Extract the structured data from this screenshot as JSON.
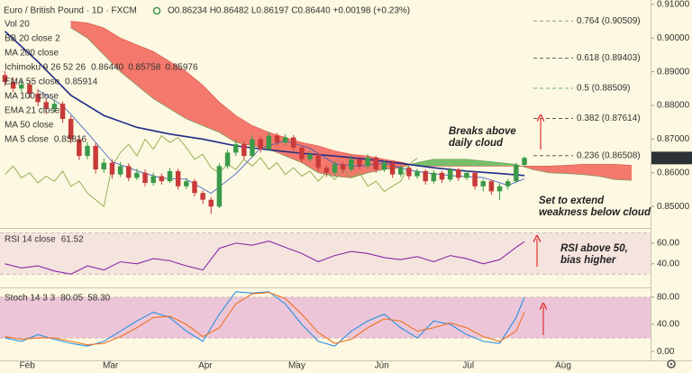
{
  "chart_data": [
    {
      "type": "candlestick",
      "title": "Euro / British Pound · 1D · FXCM",
      "ohlc_text": "O0.86234 H0.86482 L0.86197 C0.86440 +0.00198 (+0.23%)",
      "open": [
        0.889,
        0.887,
        0.885,
        0.8862,
        0.8835,
        0.881,
        0.879,
        0.8805,
        0.876,
        0.87,
        0.865,
        0.868,
        0.861,
        0.863,
        0.8595,
        0.862,
        0.8585,
        0.86,
        0.857,
        0.859,
        0.8575,
        0.8605,
        0.856,
        0.8575,
        0.854,
        0.852,
        0.85,
        0.862,
        0.866,
        0.8685,
        0.865,
        0.87,
        0.867,
        0.871,
        0.869,
        0.8705,
        0.8675,
        0.864,
        0.8655,
        0.8615,
        0.86,
        0.8625,
        0.861,
        0.864,
        0.862,
        0.8645,
        0.861,
        0.863,
        0.8595,
        0.8615,
        0.859,
        0.8605,
        0.8575,
        0.86,
        0.858,
        0.861,
        0.8585,
        0.86,
        0.856,
        0.8575,
        0.8545,
        0.856,
        0.8575,
        0.86234
      ],
      "high": [
        0.8902,
        0.8883,
        0.8875,
        0.8872,
        0.8848,
        0.8822,
        0.8818,
        0.8812,
        0.877,
        0.8712,
        0.8692,
        0.8688,
        0.8642,
        0.864,
        0.8632,
        0.8628,
        0.8612,
        0.861,
        0.86,
        0.8598,
        0.8615,
        0.8612,
        0.8585,
        0.8582,
        0.8548,
        0.8528,
        0.8628,
        0.8668,
        0.8698,
        0.8692,
        0.8712,
        0.8708,
        0.8722,
        0.8718,
        0.8715,
        0.8712,
        0.8682,
        0.8665,
        0.866,
        0.8622,
        0.8635,
        0.8632,
        0.8652,
        0.8648,
        0.8655,
        0.865,
        0.8638,
        0.8636,
        0.8622,
        0.862,
        0.8612,
        0.861,
        0.8608,
        0.8606,
        0.8616,
        0.8615,
        0.8607,
        0.8605,
        0.8582,
        0.858,
        0.8568,
        0.8582,
        0.863,
        0.86482
      ],
      "low": [
        0.8858,
        0.884,
        0.8838,
        0.8822,
        0.8798,
        0.8775,
        0.878,
        0.8748,
        0.8688,
        0.8638,
        0.864,
        0.8598,
        0.86,
        0.8582,
        0.8588,
        0.8575,
        0.8578,
        0.856,
        0.8562,
        0.8565,
        0.857,
        0.855,
        0.8552,
        0.853,
        0.8508,
        0.8478,
        0.8495,
        0.8612,
        0.865,
        0.864,
        0.8645,
        0.866,
        0.8665,
        0.868,
        0.8682,
        0.8665,
        0.863,
        0.8632,
        0.8605,
        0.8588,
        0.8592,
        0.86,
        0.8602,
        0.861,
        0.8612,
        0.86,
        0.8602,
        0.8585,
        0.8588,
        0.858,
        0.8582,
        0.8565,
        0.8568,
        0.857,
        0.8574,
        0.8576,
        0.8578,
        0.855,
        0.8545,
        0.8535,
        0.852,
        0.855,
        0.857,
        0.86197
      ],
      "close": [
        0.887,
        0.885,
        0.8862,
        0.8835,
        0.881,
        0.879,
        0.8805,
        0.876,
        0.87,
        0.865,
        0.868,
        0.861,
        0.863,
        0.8595,
        0.862,
        0.8585,
        0.86,
        0.857,
        0.859,
        0.8575,
        0.8605,
        0.856,
        0.8575,
        0.854,
        0.852,
        0.85,
        0.862,
        0.866,
        0.8685,
        0.865,
        0.87,
        0.867,
        0.871,
        0.869,
        0.8705,
        0.8675,
        0.864,
        0.8655,
        0.8615,
        0.86,
        0.8625,
        0.861,
        0.864,
        0.862,
        0.8645,
        0.861,
        0.863,
        0.8595,
        0.8615,
        0.859,
        0.8605,
        0.8575,
        0.86,
        0.858,
        0.861,
        0.8585,
        0.86,
        0.856,
        0.8575,
        0.8545,
        0.856,
        0.8575,
        0.8623,
        0.8644
      ],
      "up_color": "#3a9a4a",
      "down_color": "#c83a3a",
      "cloud": {
        "x": [
          8,
          10,
          12,
          14,
          16,
          18,
          20,
          22,
          24,
          26,
          28,
          30,
          32,
          34,
          36,
          38,
          40,
          42,
          44,
          46,
          48,
          50,
          52,
          54,
          56,
          58,
          60,
          62,
          64,
          66,
          68,
          70,
          72,
          74,
          76
        ],
        "span_a": [
          0.903,
          0.9,
          0.895,
          0.89,
          0.886,
          0.882,
          0.879,
          0.876,
          0.874,
          0.872,
          0.869,
          0.868,
          0.867,
          0.865,
          0.863,
          0.86,
          0.859,
          0.8585,
          0.86,
          0.861,
          0.8615,
          0.863,
          0.864,
          0.864,
          0.864,
          0.8635,
          0.863,
          0.8625,
          0.861,
          0.86,
          0.8598,
          0.8595,
          0.859,
          0.858,
          0.8578
        ],
        "span_b": [
          0.905,
          0.9045,
          0.903,
          0.9,
          0.898,
          0.896,
          0.893,
          0.89,
          0.886,
          0.881,
          0.877,
          0.874,
          0.872,
          0.8705,
          0.869,
          0.868,
          0.8665,
          0.8655,
          0.865,
          0.864,
          0.8632,
          0.862,
          0.862,
          0.862,
          0.862,
          0.862,
          0.862,
          0.862,
          0.862,
          0.862,
          0.8622,
          0.8625,
          0.8625,
          0.8625,
          0.8622
        ],
        "bull_color": "#77bf6a",
        "bear_color": "#f4786c"
      },
      "overlays": [
        {
          "color": "#8aab4a",
          "width": 0.9,
          "values": [
            0.8595,
            0.862,
            0.8585,
            0.86,
            0.857,
            0.859,
            0.8575,
            0.8605,
            0.856,
            0.8575,
            0.854,
            0.852,
            0.85,
            0.862,
            0.866,
            0.8685,
            0.865,
            0.87,
            0.867,
            0.871,
            0.869,
            0.8705,
            0.8675,
            0.864,
            0.8655,
            0.8615,
            0.86,
            0.8625,
            0.861,
            0.864,
            0.862,
            0.8645,
            0.861,
            0.863,
            0.8595,
            0.8615,
            0.859,
            0.8605,
            0.8575,
            0.86,
            0.858,
            0.861,
            0.8585,
            0.86,
            0.856,
            0.8575,
            0.8545,
            0.856,
            0.8575,
            0.8623,
            0.8644
          ]
        },
        {
          "color": "#1f2c86",
          "width": 1.6,
          "x": [
            0,
            4,
            8,
            12,
            16,
            20,
            24,
            28,
            32,
            36,
            40,
            44,
            48,
            52,
            56,
            60,
            63
          ],
          "values": [
            0.902,
            0.893,
            0.883,
            0.877,
            0.8735,
            0.8715,
            0.87,
            0.868,
            0.8668,
            0.8658,
            0.865,
            0.864,
            0.8628,
            0.8615,
            0.8605,
            0.8598,
            0.8592
          ]
        },
        {
          "color": "#3b5bc4",
          "width": 0.8,
          "x": [
            4,
            7,
            10,
            13,
            16,
            19,
            22,
            25,
            28,
            31,
            34,
            37,
            40,
            43,
            46,
            49,
            52,
            55,
            58,
            61,
            63
          ],
          "values": [
            0.8845,
            0.88,
            0.8719,
            0.8633,
            0.8606,
            0.8584,
            0.8581,
            0.8539,
            0.8597,
            0.8673,
            0.8695,
            0.8673,
            0.8627,
            0.8619,
            0.8629,
            0.8608,
            0.8597,
            0.859,
            0.8586,
            0.8563,
            0.8582
          ]
        }
      ],
      "indicator_labels": [
        {
          "text": "Vol 20",
          "muted": true
        },
        {
          "text": "BB 20 close 2",
          "muted": true
        },
        {
          "text": "MA 200 close",
          "muted": true
        },
        {
          "text": "Ichimoku 9 26 52 26",
          "values": [
            {
              "text": "0.86440",
              "color": "#3a9a4a"
            },
            {
              "text": "0.85758",
              "color": "#4d8f7a"
            },
            {
              "text": "0.85976",
              "color": "#d0453a"
            }
          ]
        },
        {
          "text": "EMA 55 close",
          "values": [
            {
              "text": "0.85914",
              "color": "#1f2c86"
            }
          ]
        },
        {
          "text": "MA 100 close",
          "muted": true
        },
        {
          "text": "EMA 21 close",
          "muted": true
        },
        {
          "text": "MA 50 close",
          "muted": true
        },
        {
          "text": "MA 5 close",
          "values": [
            {
              "text": "0.85816",
              "color": "#3b5bc4"
            }
          ]
        }
      ],
      "fib_levels": [
        {
          "label": "0.764 (0.90509)",
          "value": 0.90509,
          "color": "#777777"
        },
        {
          "label": "0.618 (0.89403)",
          "value": 0.89403,
          "color": "#555555"
        },
        {
          "label": "0.5 (0.88509)",
          "value": 0.88509,
          "color": "#3f9a3f"
        },
        {
          "label": "0.382 (0.87614)",
          "value": 0.87614,
          "color": "#444444"
        },
        {
          "label": "0.236 (0.86508)",
          "value": 0.86508,
          "color": "#444444"
        }
      ],
      "last_price": {
        "value": 0.8644,
        "label": "0.86440"
      },
      "xlim": [
        -0.6,
        78.3
      ],
      "xticks": [
        {
          "value": 2.7,
          "label": "Feb"
        },
        {
          "value": 12.8,
          "label": "Mar"
        },
        {
          "value": 24.3,
          "label": "Apr"
        },
        {
          "value": 35.4,
          "label": "May"
        },
        {
          "value": 45.7,
          "label": "Jun"
        },
        {
          "value": 56.2,
          "label": "Jul"
        },
        {
          "value": 67.7,
          "label": "Aug"
        }
      ],
      "ylim": [
        0.8439,
        0.9113
      ],
      "yticks": [
        {
          "value": 0.91,
          "label": "0.91000"
        },
        {
          "value": 0.9,
          "label": "0.90000"
        },
        {
          "value": 0.89,
          "label": "0.89000"
        },
        {
          "value": 0.88,
          "label": "0.88000"
        },
        {
          "value": 0.87,
          "label": "0.87000"
        },
        {
          "value": 0.86,
          "label": "0.86000"
        },
        {
          "value": 0.85,
          "label": "0.85000"
        }
      ]
    },
    {
      "type": "line",
      "label": "RSI 14 close",
      "x": [
        0,
        2,
        4,
        6,
        8,
        10,
        12,
        14,
        16,
        18,
        20,
        22,
        24,
        26,
        28,
        30,
        32,
        34,
        36,
        38,
        40,
        42,
        44,
        46,
        48,
        50,
        52,
        54,
        56,
        58,
        60,
        62,
        63
      ],
      "series": [
        {
          "color": "#8a2aa8",
          "value_label": "61.52",
          "values": [
            40,
            36,
            38,
            33,
            30,
            38,
            34,
            42,
            40,
            45,
            43,
            38,
            34,
            55,
            60,
            58,
            62,
            56,
            50,
            42,
            48,
            52,
            50,
            46,
            44,
            47,
            42,
            48,
            45,
            40,
            44,
            56,
            61.52
          ]
        }
      ],
      "band": [
        70,
        30
      ],
      "band_color": "#f5e3de",
      "ylim": [
        18,
        73
      ],
      "yticks": [
        {
          "value": 60,
          "label": "60.00"
        },
        {
          "value": 40,
          "label": "40.00"
        }
      ]
    },
    {
      "type": "line",
      "label": "Stoch 14 3 3",
      "x": [
        0,
        2,
        4,
        6,
        8,
        10,
        12,
        14,
        16,
        18,
        20,
        22,
        24,
        26,
        28,
        30,
        32,
        34,
        36,
        38,
        40,
        42,
        44,
        46,
        48,
        50,
        52,
        54,
        56,
        58,
        60,
        62,
        63
      ],
      "series": [
        {
          "color": "#2a8fe0",
          "value_label": "80.05",
          "values": [
            20,
            15,
            25,
            18,
            12,
            8,
            15,
            30,
            45,
            58,
            50,
            30,
            15,
            55,
            88,
            86,
            88,
            70,
            40,
            15,
            8,
            30,
            45,
            55,
            35,
            20,
            45,
            40,
            25,
            15,
            12,
            50,
            80.05
          ]
        },
        {
          "color": "#f07020",
          "value_label": "58.30",
          "values": [
            22,
            18,
            20,
            20,
            15,
            10,
            12,
            22,
            35,
            50,
            52,
            40,
            22,
            35,
            70,
            85,
            87,
            78,
            55,
            28,
            12,
            18,
            35,
            48,
            45,
            30,
            35,
            42,
            35,
            22,
            15,
            30,
            58.3
          ]
        }
      ],
      "band": [
        80,
        20
      ],
      "band_color": "#ecc6d8",
      "ylim": [
        -13,
        93
      ],
      "yticks": [
        {
          "value": 80,
          "label": "80.00"
        },
        {
          "value": 40,
          "label": "40.00"
        },
        {
          "value": 0,
          "label": "0.00"
        }
      ]
    }
  ],
  "annotations": [
    {
      "lines": [
        "Breaks above",
        "daily cloud"
      ]
    },
    {
      "lines": [
        "Set to extend",
        "weakness below cloud"
      ]
    },
    {
      "lines": [
        "RSI above 50,",
        "bias higher"
      ]
    }
  ]
}
